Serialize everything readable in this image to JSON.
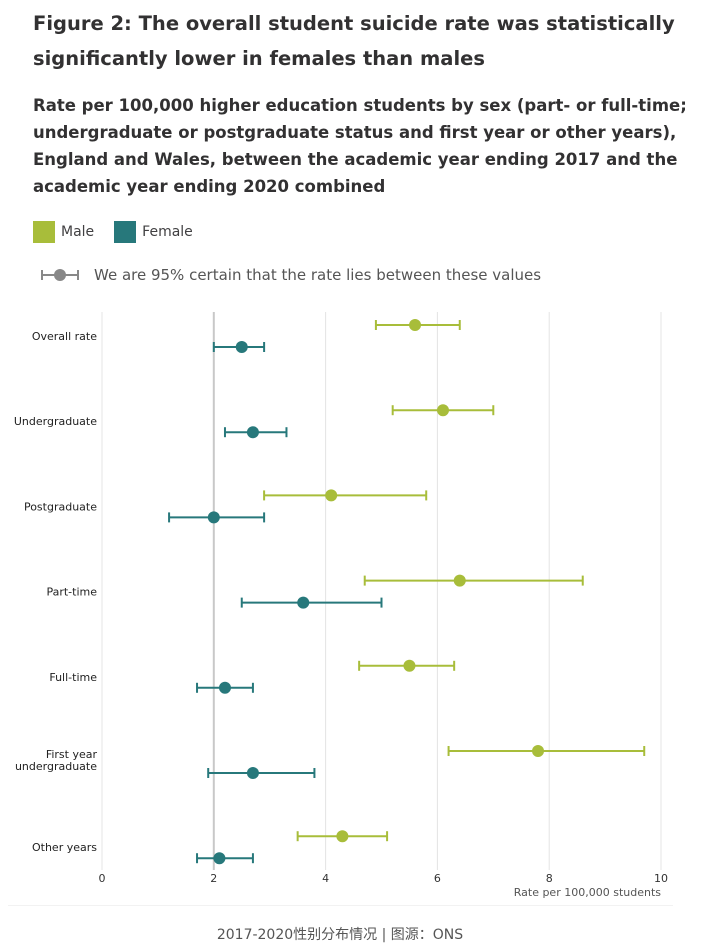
{
  "chart_data": {
    "type": "scatter",
    "title": "Figure 2: The overall student suicide rate was statistically significantly lower in females than males",
    "subtitle": "Rate per 100,000 higher education students by sex (part- or full-time; undergraduate or postgraduate status and first year or other years), England and Wales, between the academic year ending 2017 and the academic year ending 2020 combined",
    "xlabel": "Rate per 100,000 students",
    "xlim": [
      0,
      10
    ],
    "xticks": [
      0,
      2,
      4,
      6,
      8,
      10
    ],
    "reference_line": 2,
    "grid": true,
    "categories": [
      [
        "Overall rate"
      ],
      [
        "Undergraduate"
      ],
      [
        "Postgraduate"
      ],
      [
        "Part-time"
      ],
      [
        "Full-time"
      ],
      [
        "First year",
        "undergraduate"
      ],
      [
        "Other years"
      ]
    ],
    "series": [
      {
        "name": "Male",
        "color": "#a8bd3a",
        "values": [
          5.6,
          6.1,
          4.1,
          6.4,
          5.5,
          7.8,
          4.3
        ],
        "ci_low": [
          4.9,
          5.2,
          2.9,
          4.7,
          4.6,
          6.2,
          3.5
        ],
        "ci_high": [
          6.4,
          7.0,
          5.8,
          8.6,
          6.3,
          9.7,
          5.1
        ]
      },
      {
        "name": "Female",
        "color": "#27787b",
        "values": [
          2.5,
          2.7,
          2.0,
          3.6,
          2.2,
          2.7,
          2.1
        ],
        "ci_low": [
          2.0,
          2.2,
          1.2,
          2.5,
          1.7,
          1.9,
          1.7
        ],
        "ci_high": [
          2.9,
          3.3,
          2.9,
          5.0,
          2.7,
          3.8,
          2.7
        ]
      }
    ]
  },
  "legend": {
    "ci_text": "We are 95% certain that the rate lies between these values",
    "ci_color": "#888888"
  },
  "caption": "2017-2020性别分布情况 | 图源：ONS"
}
